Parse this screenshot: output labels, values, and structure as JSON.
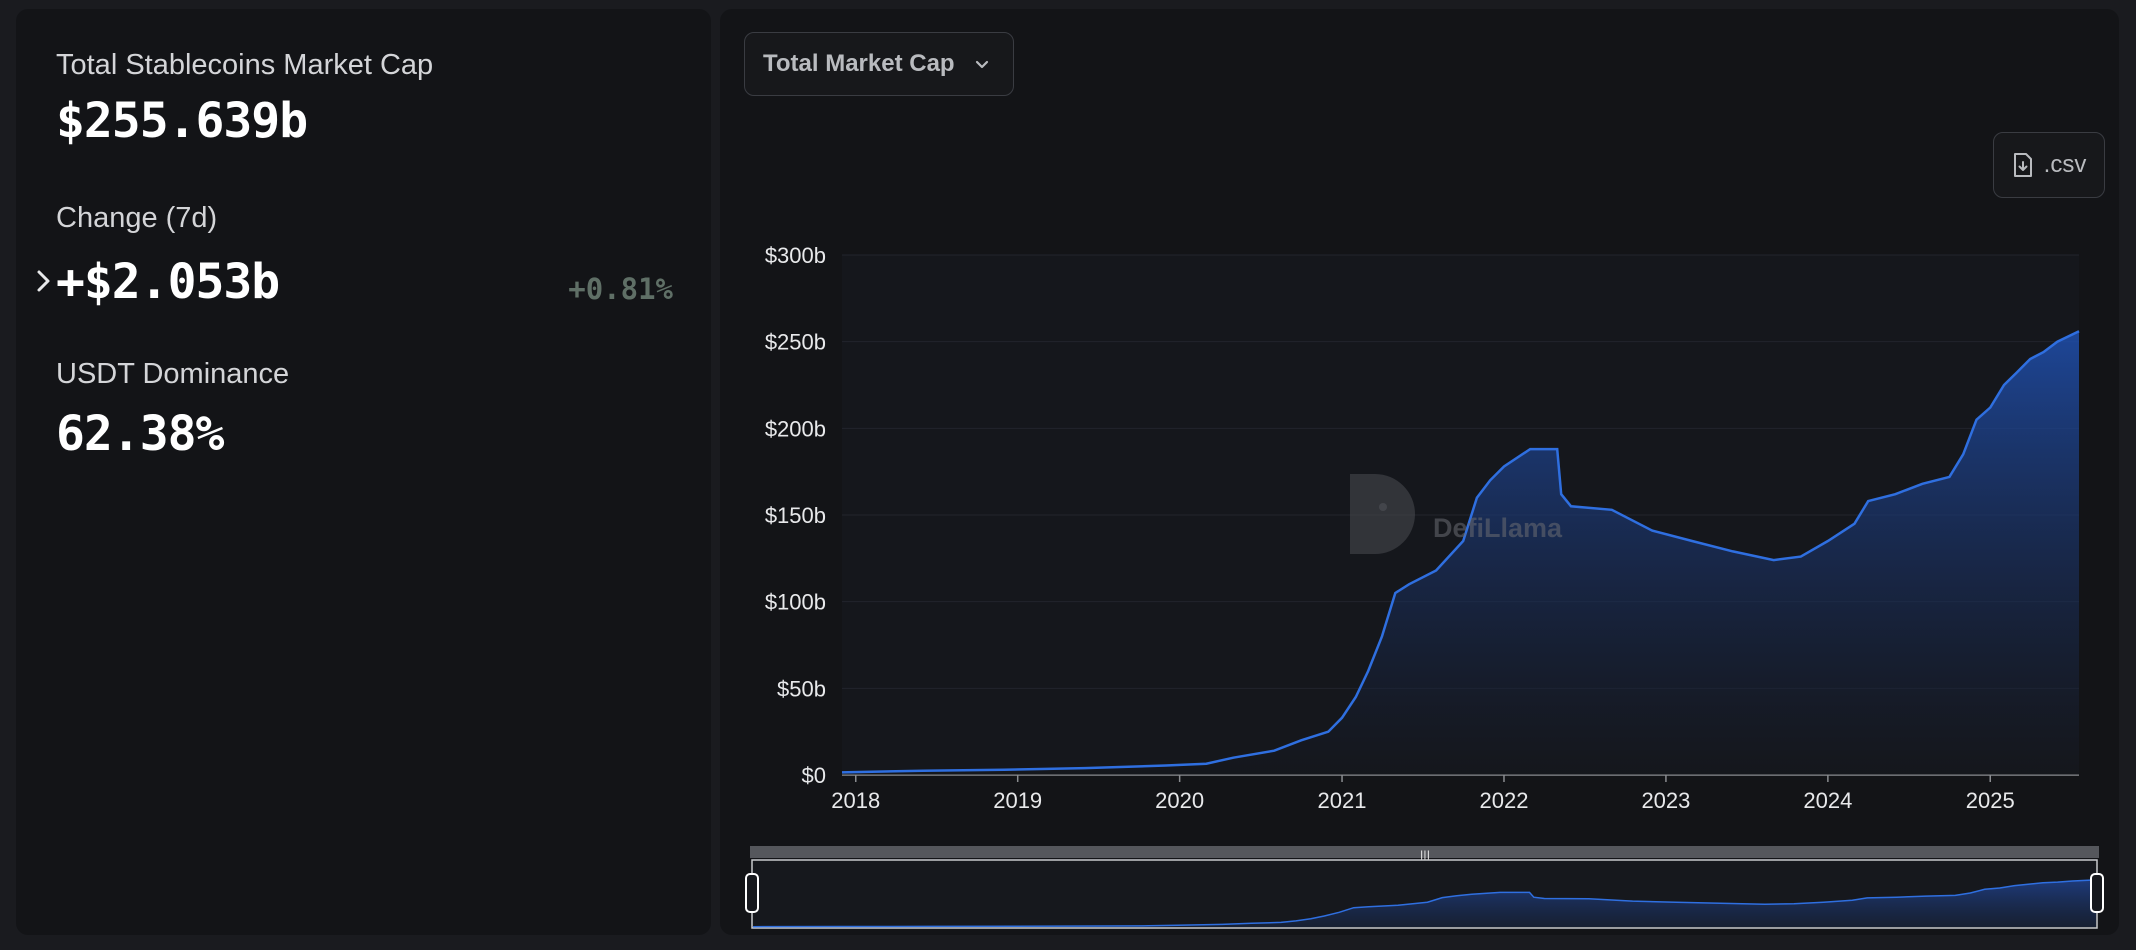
{
  "stats": {
    "market_cap_label": "Total Stablecoins Market Cap",
    "market_cap_value": "$255.639b",
    "change_label": "Change (7d)",
    "change_value": "+$2.053b",
    "change_pct": "+0.81%",
    "dominance_label": "USDT Dominance",
    "dominance_value": "62.38%"
  },
  "controls": {
    "dropdown_selected": "Total Market Cap",
    "csv_label": ".csv"
  },
  "watermark": "DefiLlama",
  "colors": {
    "line": "#2f6fe0",
    "area_top": "#1f4fae",
    "change_pct": "#5f6f66"
  },
  "chart_data": {
    "type": "area",
    "title": "",
    "xlabel": "",
    "ylabel": "",
    "x_ticks": [
      "2018",
      "2019",
      "2020",
      "2021",
      "2022",
      "2023",
      "2024",
      "2025"
    ],
    "y_ticks": [
      "$0",
      "$50b",
      "$100b",
      "$150b",
      "$200b",
      "$250b",
      "$300b"
    ],
    "ylim": [
      0,
      300
    ],
    "xlim": [
      "2017-12-01",
      "2025-07-20"
    ],
    "series": [
      {
        "values_unit": "billion USD",
        "points": [
          [
            "2017-12-01",
            1.5
          ],
          [
            "2018-06-01",
            2.5
          ],
          [
            "2018-12-01",
            3
          ],
          [
            "2019-06-01",
            4
          ],
          [
            "2019-12-01",
            5.5
          ],
          [
            "2020-03-01",
            6.5
          ],
          [
            "2020-05-01",
            10
          ],
          [
            "2020-08-01",
            14
          ],
          [
            "2020-10-01",
            20
          ],
          [
            "2020-12-01",
            25
          ],
          [
            "2021-01-01",
            33
          ],
          [
            "2021-02-01",
            45
          ],
          [
            "2021-03-01",
            60
          ],
          [
            "2021-04-01",
            80
          ],
          [
            "2021-05-01",
            105
          ],
          [
            "2021-06-01",
            110
          ],
          [
            "2021-08-01",
            118
          ],
          [
            "2021-10-01",
            135
          ],
          [
            "2021-11-01",
            160
          ],
          [
            "2021-12-01",
            170
          ],
          [
            "2022-01-01",
            178
          ],
          [
            "2022-03-01",
            188
          ],
          [
            "2022-05-01",
            188
          ],
          [
            "2022-05-10",
            162
          ],
          [
            "2022-06-01",
            155
          ],
          [
            "2022-09-01",
            153
          ],
          [
            "2022-12-01",
            141
          ],
          [
            "2023-03-01",
            135
          ],
          [
            "2023-06-01",
            129
          ],
          [
            "2023-09-01",
            124
          ],
          [
            "2023-11-01",
            126
          ],
          [
            "2024-01-01",
            135
          ],
          [
            "2024-03-01",
            145
          ],
          [
            "2024-04-01",
            158
          ],
          [
            "2024-06-01",
            162
          ],
          [
            "2024-08-01",
            168
          ],
          [
            "2024-10-01",
            172
          ],
          [
            "2024-11-01",
            185
          ],
          [
            "2024-12-01",
            205
          ],
          [
            "2025-01-01",
            212
          ],
          [
            "2025-02-01",
            225
          ],
          [
            "2025-03-01",
            232
          ],
          [
            "2025-04-01",
            240
          ],
          [
            "2025-05-01",
            244
          ],
          [
            "2025-06-01",
            250
          ],
          [
            "2025-07-20",
            256
          ]
        ]
      }
    ],
    "grid": true
  }
}
